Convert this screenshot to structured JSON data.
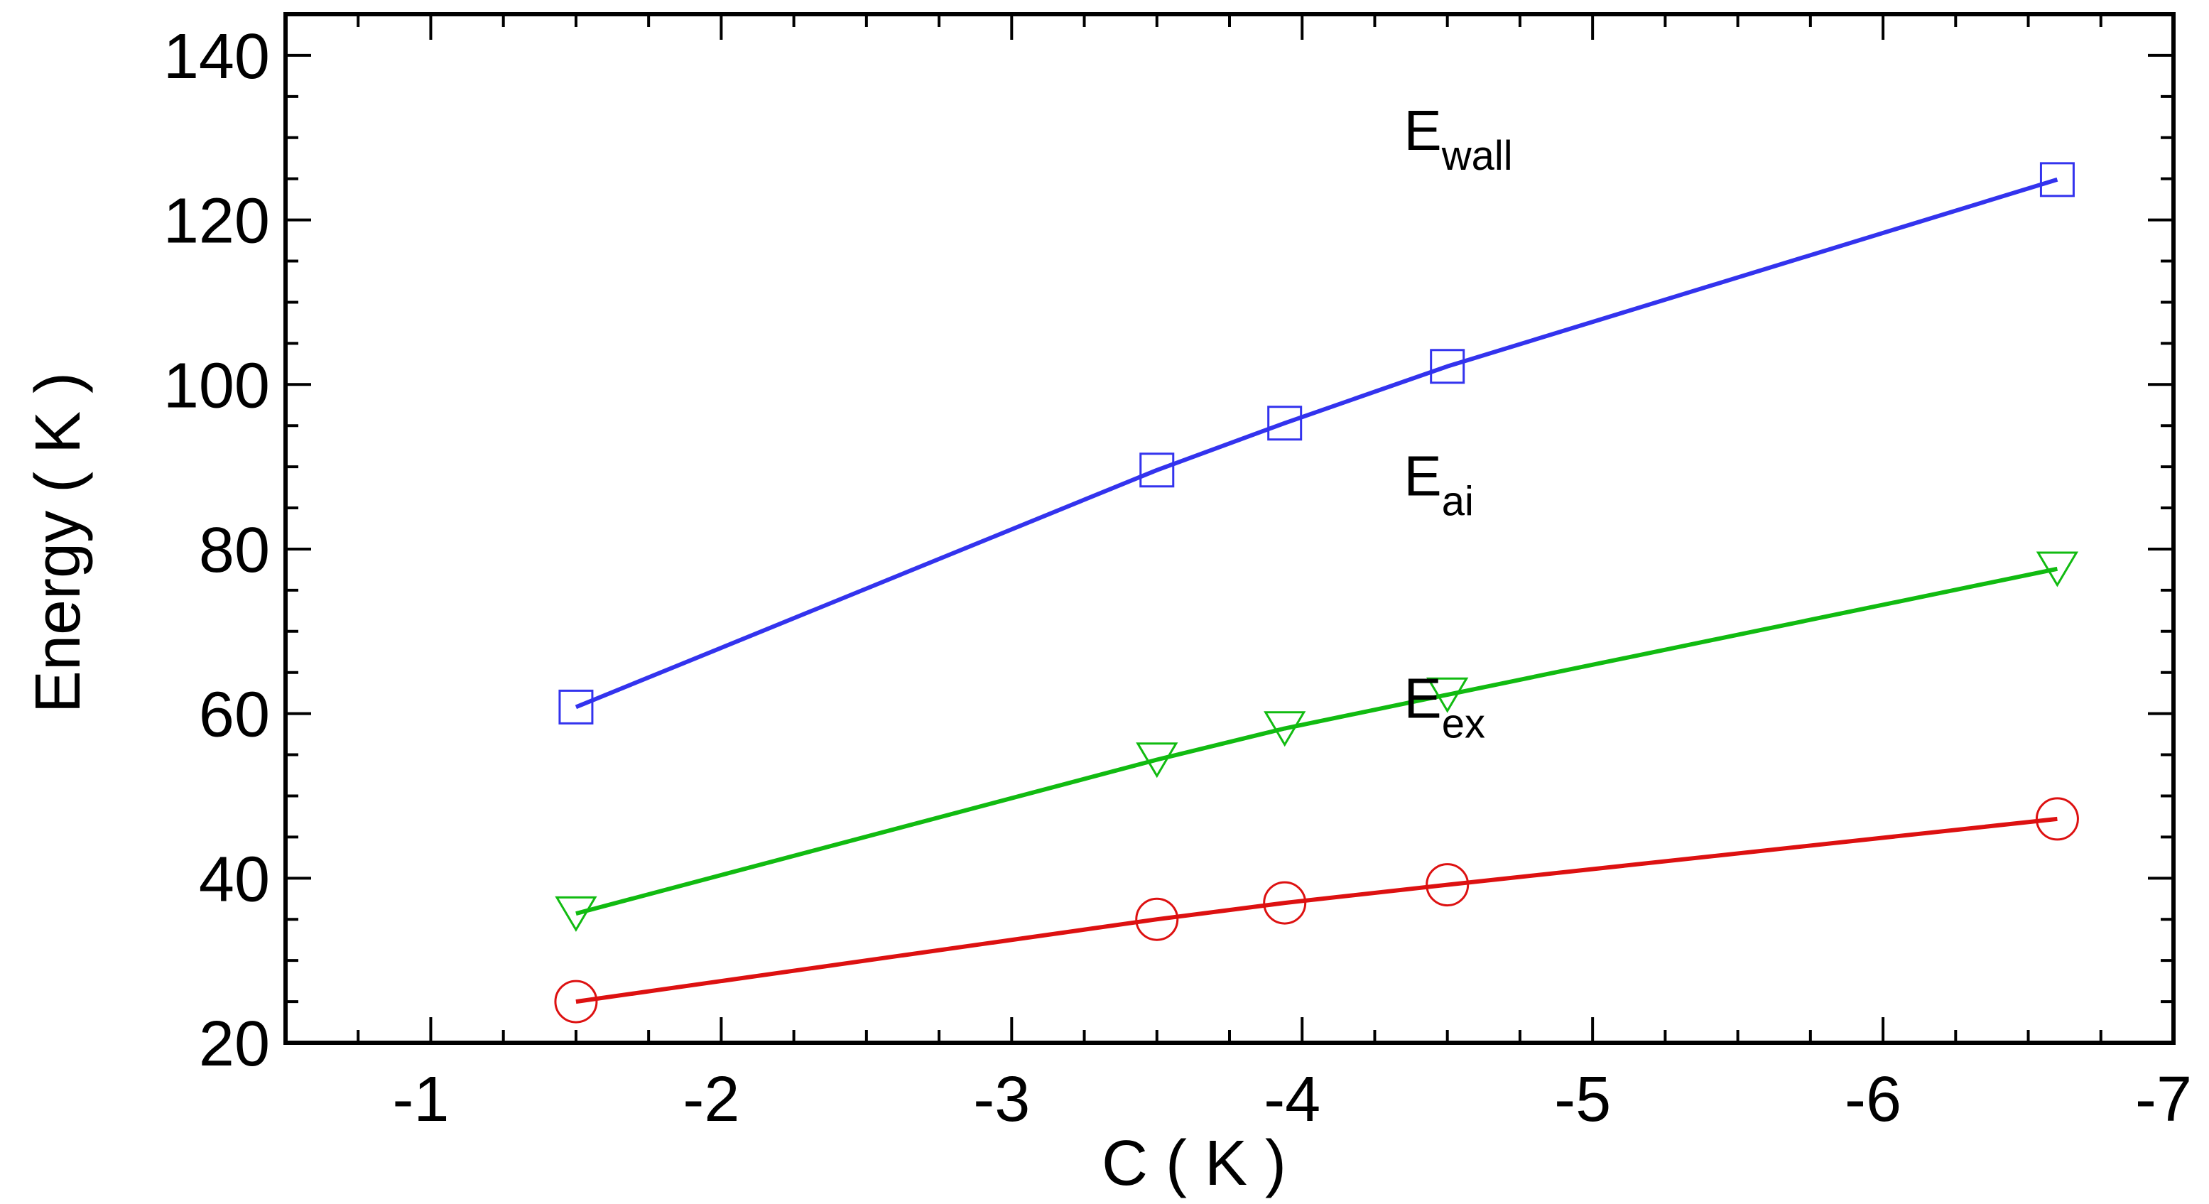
{
  "chart_data": {
    "type": "line",
    "title": "",
    "xlabel": "C ( K )",
    "ylabel": "Energy ( K )",
    "xlim": [
      -0.5,
      -7
    ],
    "ylim": [
      20,
      145
    ],
    "x_reversed": true,
    "x_ticks": [
      -1,
      -2,
      -3,
      -4,
      -5,
      -6,
      -7
    ],
    "y_ticks": [
      20,
      40,
      60,
      80,
      100,
      120,
      140
    ],
    "x": [
      -1.5,
      -3.5,
      -3.94,
      -4.5,
      -6.6
    ],
    "grid": false,
    "legend": "none",
    "series": [
      {
        "name": "E_wall",
        "label_main": "E",
        "label_sub": "wall",
        "marker": "square",
        "color": "#3333ee",
        "values": [
          60.8,
          89.6,
          95.3,
          102.2,
          124.9
        ]
      },
      {
        "name": "E_ai",
        "label_main": "E",
        "label_sub": "ai",
        "marker": "triangle-down",
        "color": "#11bb11",
        "values": [
          35.7,
          54.4,
          58.2,
          62.3,
          77.6
        ]
      },
      {
        "name": "E_ex",
        "label_main": "E",
        "label_sub": "ex",
        "marker": "circle",
        "color": "#dd1111",
        "values": [
          25.0,
          35.0,
          37.0,
          39.2,
          47.2
        ]
      }
    ],
    "annotations": [
      {
        "series": "E_wall",
        "x": -4.35,
        "y": 128.5
      },
      {
        "series": "E_ai",
        "x": -4.35,
        "y": 86.5
      },
      {
        "series": "E_ex",
        "x": -4.35,
        "y": 59.5
      }
    ]
  }
}
